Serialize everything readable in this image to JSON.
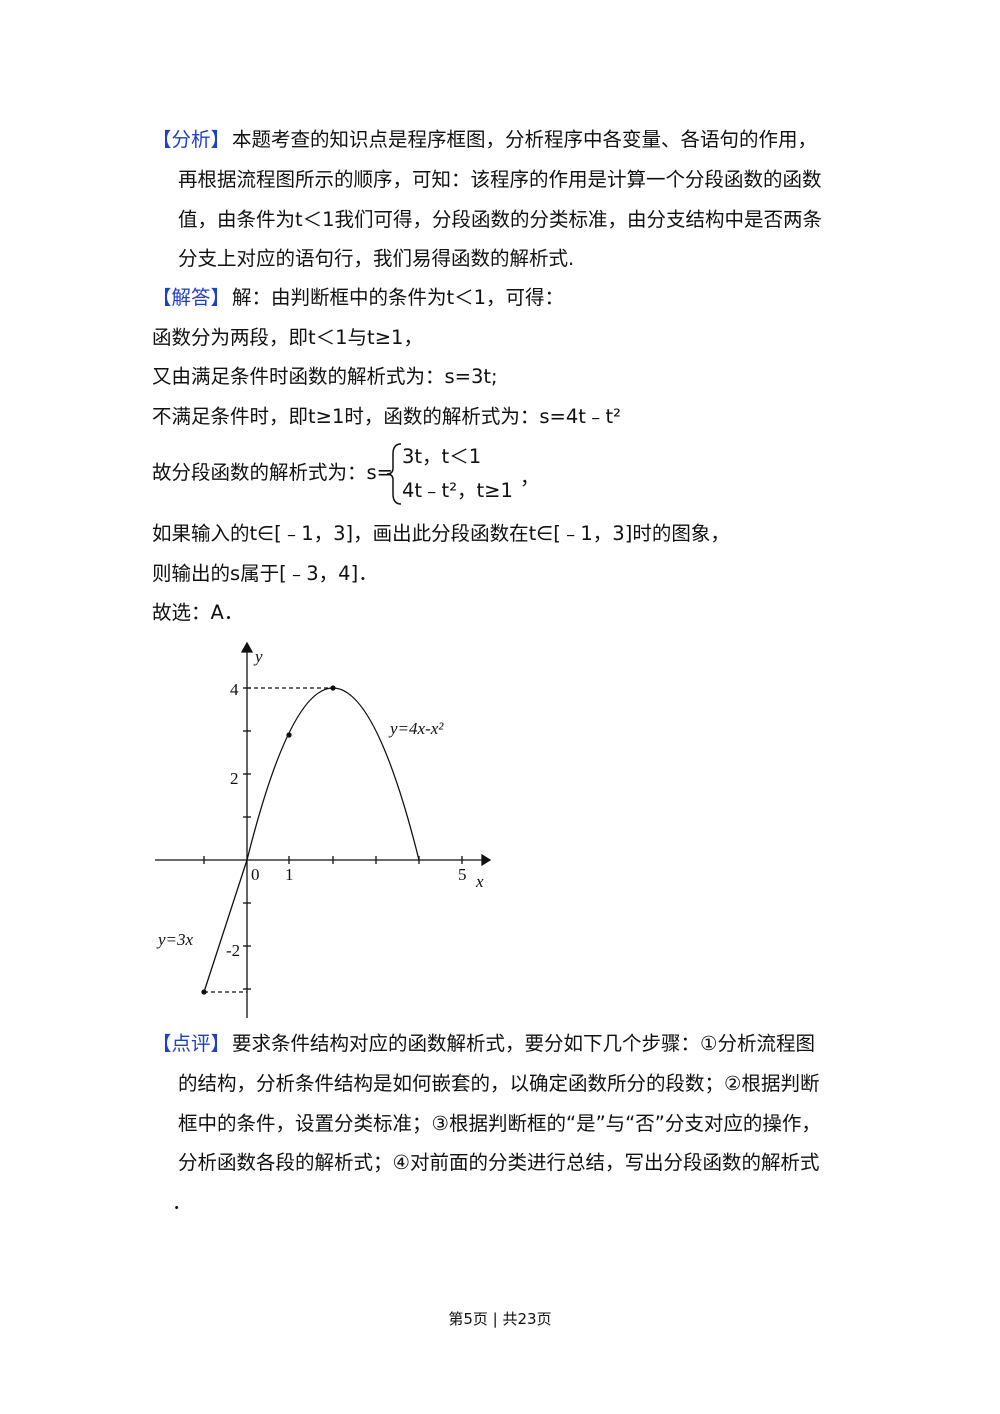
{
  "analysis": {
    "label": "【分析】",
    "lines": [
      "本题考查的知识点是程序框图，分析程序中各变量、各语句的作用，",
      "再根据流程图所示的顺序，可知：该程序的作用是计算一个分段函数的函数",
      "值，由条件为t＜1我们可得，分段函数的分类标准，由分支结构中是否两条",
      "分支上对应的语句行，我们易得函数的解析式."
    ]
  },
  "solution": {
    "label": "【解答】",
    "lines": [
      "解：由判断框中的条件为t＜1，可得：",
      "函数分为两段，即t＜1与t≥1，",
      "又由满足条件时函数的解析式为：s=3t;",
      "不满足条件时，即t≥1时，函数的解析式为：s=4t﹣t²"
    ],
    "piecewise": {
      "prefix": "故分段函数的解析式为：s=",
      "cases": [
        "3t，t＜1",
        "4t﹣t²，t≥1"
      ],
      "suffix": "，"
    },
    "after": [
      "如果输入的t∈[﹣1，3]，画出此分段函数在t∈[﹣1，3]时的图象，",
      "则输出的s属于[﹣3，4]．",
      "故选：A．"
    ]
  },
  "graph": {
    "y_label": "y",
    "x_label": "x",
    "y_ticks": [
      "4",
      "2",
      "-2"
    ],
    "x_ticks": [
      "0",
      "1",
      "5"
    ],
    "curve_labels": [
      "y=4x-x²",
      "y=3x"
    ]
  },
  "comment": {
    "label": "【点评】",
    "lines": [
      "要求条件结构对应的函数解析式，要分如下几个步骤：①分析流程图",
      "的结构，分析条件结构是如何嵌套的，以确定函数所分的段数；②根据判断",
      "框中的条件，设置分类标准；③根据判断框的“是”与“否”分支对应的操作，",
      "分析函数各段的解析式；④对前面的分类进行总结，写出分段函数的解析式",
      "．"
    ]
  },
  "footer": "第5页 | 共23页"
}
